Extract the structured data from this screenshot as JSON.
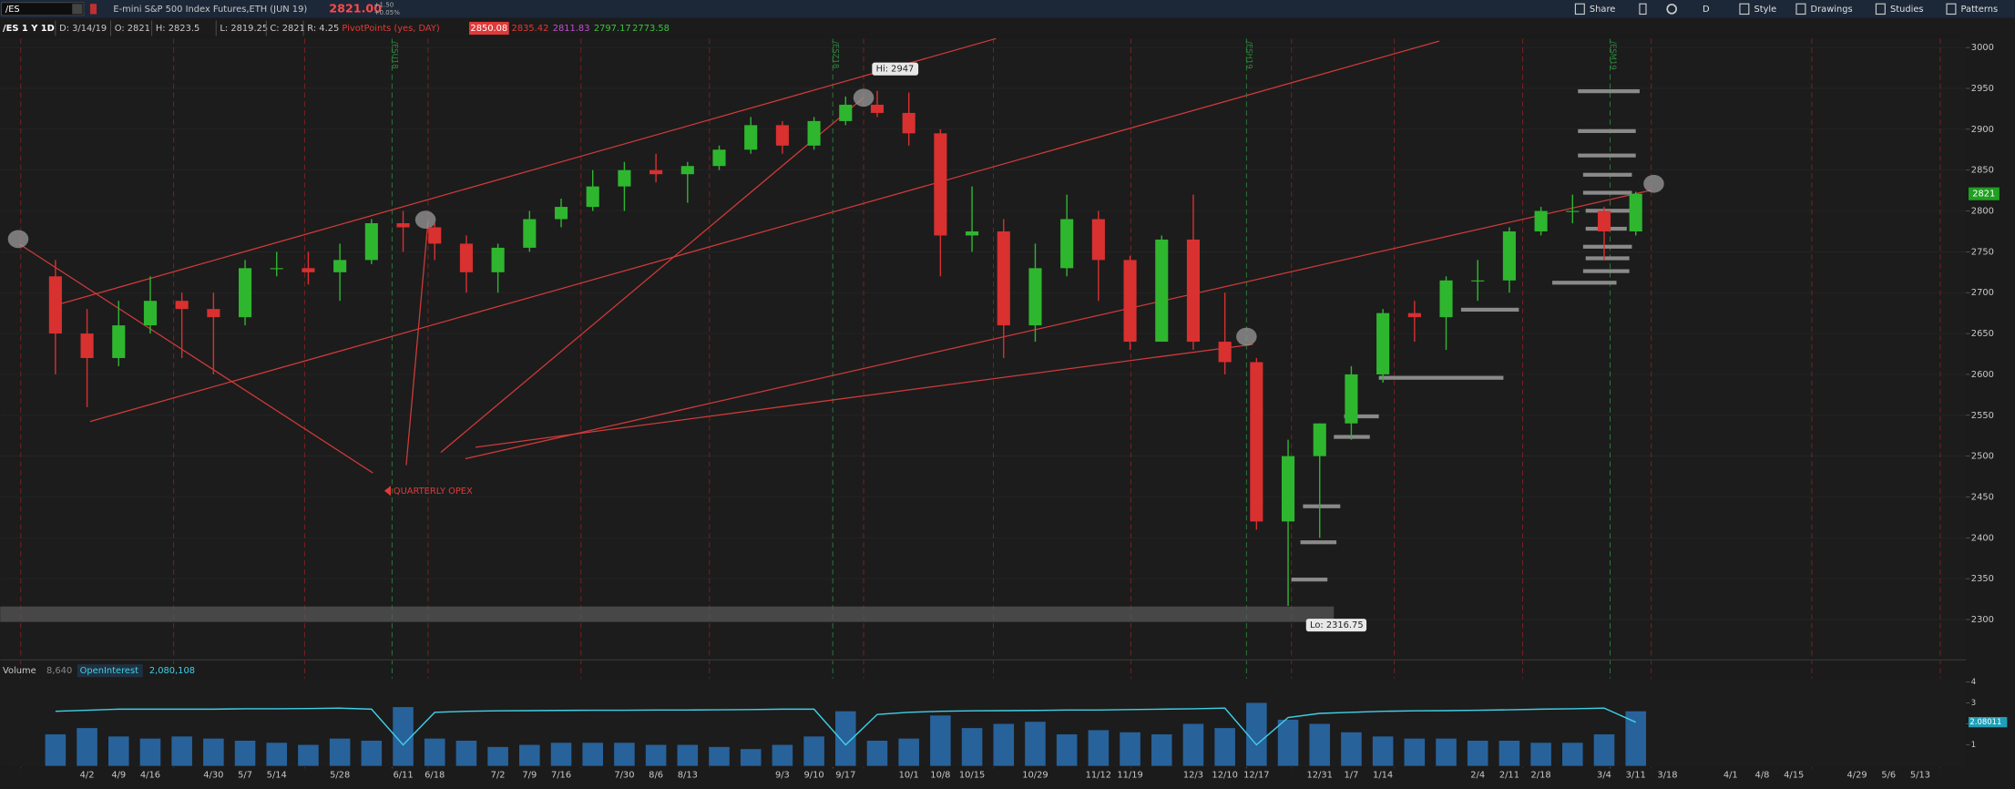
{
  "toolbar": {
    "symbol": "/ES",
    "description": "E-mini S&P 500 Index Futures,ETH (JUN 19)",
    "last": "2821.00",
    "change": "+1.50",
    "change_pct": "+0.05%",
    "buttons": [
      "Share",
      "D",
      "Style",
      "Drawings",
      "Studies",
      "Patterns"
    ]
  },
  "header": {
    "study": "/ES 1 Y 1D",
    "items": [
      "D: 3/14/19",
      "O: 2821",
      "H: 2823.5",
      "L: 2819.25",
      "C: 2821",
      "R: 4.25"
    ],
    "pivots_label": "PivotPoints (yes, DAY)",
    "pivots": [
      {
        "label": "2850.08",
        "color": "#e03a3a"
      },
      {
        "label": "2835.42",
        "color": "#e03a3a"
      },
      {
        "label": "2811.83",
        "color": "#c050d0"
      },
      {
        "label": "2797.17",
        "color": "#3cc43c"
      },
      {
        "label": "2773.58",
        "color": "#3cc43c"
      }
    ]
  },
  "chart_data": [
    {
      "type": "candlestick",
      "categories": [
        null,
        "4/2",
        "4/9",
        "4/16",
        null,
        "4/30",
        "5/7",
        "5/14",
        null,
        "5/28",
        null,
        "6/11",
        "6/18",
        null,
        "7/2",
        "7/9",
        "7/16",
        null,
        "7/30",
        "8/6",
        "8/13",
        null,
        null,
        "9/3",
        "9/10",
        "9/17",
        null,
        "10/1",
        "10/8",
        "10/15",
        null,
        "10/29",
        null,
        "11/12",
        "11/19",
        null,
        "12/3",
        "12/10",
        "12/17",
        null,
        "12/31",
        "1/7",
        "1/14",
        null,
        null,
        "2/4",
        "2/11",
        "2/18",
        null,
        "3/4",
        "3/11",
        "3/18",
        null,
        "4/1",
        "4/8",
        "4/15",
        null,
        "4/29",
        "5/6",
        "5/13"
      ],
      "open": [
        2720,
        2650,
        2620,
        2660,
        2690,
        2680,
        2670,
        2730,
        2730,
        2725,
        2740,
        2785,
        2780,
        2760,
        2725,
        2755,
        2790,
        2805,
        2830,
        2850,
        2845,
        2855,
        2875,
        2905,
        2880,
        2910,
        2930,
        2920,
        2895,
        2770,
        2775,
        2660,
        2730,
        2790,
        2740,
        2640,
        2765,
        2640,
        2615,
        2420,
        2500,
        2540,
        2600,
        2675,
        2670,
        2715,
        2715,
        2775,
        2800,
        2800,
        2775,
        null,
        null,
        null,
        null,
        null,
        null,
        null,
        null,
        null
      ],
      "high": [
        2740,
        2680,
        2690,
        2720,
        2700,
        2700,
        2740,
        2750,
        2750,
        2760,
        2790,
        2800,
        2785,
        2770,
        2760,
        2800,
        2815,
        2850,
        2860,
        2870,
        2860,
        2880,
        2915,
        2910,
        2915,
        2940,
        2947,
        2945,
        2900,
        2830,
        2790,
        2760,
        2820,
        2800,
        2745,
        2770,
        2820,
        2700,
        2620,
        2520,
        2540,
        2610,
        2680,
        2690,
        2720,
        2740,
        2780,
        2805,
        2820,
        2805,
        2823.5,
        null,
        null,
        null,
        null,
        null,
        null,
        null,
        null,
        null
      ],
      "low": [
        2600,
        2560,
        2610,
        2650,
        2620,
        2600,
        2660,
        2720,
        2710,
        2690,
        2735,
        2750,
        2740,
        2700,
        2700,
        2750,
        2780,
        2800,
        2800,
        2835,
        2810,
        2850,
        2870,
        2870,
        2875,
        2905,
        2915,
        2880,
        2720,
        2750,
        2620,
        2640,
        2720,
        2690,
        2630,
        2640,
        2630,
        2600,
        2410,
        2316.75,
        2400,
        2520,
        2590,
        2640,
        2630,
        2690,
        2700,
        2770,
        2785,
        2740,
        2770,
        null,
        null,
        null,
        null,
        null,
        null,
        null,
        null,
        null
      ],
      "close": [
        2650,
        2620,
        2660,
        2690,
        2680,
        2670,
        2730,
        2730,
        2725,
        2740,
        2785,
        2780,
        2760,
        2725,
        2755,
        2790,
        2805,
        2830,
        2850,
        2845,
        2855,
        2875,
        2905,
        2880,
        2910,
        2930,
        2920,
        2895,
        2770,
        2775,
        2660,
        2730,
        2790,
        2740,
        2640,
        2765,
        2640,
        2615,
        2420,
        2500,
        2540,
        2600,
        2675,
        2670,
        2715,
        2715,
        2775,
        2800,
        2800,
        2775,
        2821,
        null,
        null,
        null,
        null,
        null,
        null,
        null,
        null,
        null
      ],
      "up_color": "#2fb62f",
      "down_color": "#d93030",
      "ylim": [
        2253,
        3011
      ],
      "yticks": [
        2300,
        2350,
        2400,
        2450,
        2500,
        2550,
        2600,
        2650,
        2700,
        2750,
        2800,
        2850,
        2900,
        2950,
        3000
      ],
      "last_label": "2821",
      "high_label": "Hi: 2947",
      "low_label": "Lo: 2316.75",
      "opex_label": "QUARTERLY OPEX",
      "contracts": [
        "/ESU18",
        "/ESZ18",
        "/ESH19",
        "/ESM19"
      ]
    },
    {
      "type": "bar",
      "series": [
        {
          "name": "Volume",
          "legend_value": "8,640",
          "color": "#2a6fb0",
          "values": [
            1.5,
            1.8,
            1.4,
            1.3,
            1.4,
            1.3,
            1.2,
            1.1,
            1.0,
            1.3,
            1.2,
            2.8,
            1.3,
            1.2,
            0.9,
            1.0,
            1.1,
            1.1,
            1.1,
            1.0,
            1.0,
            0.9,
            0.8,
            1.0,
            1.4,
            2.6,
            1.2,
            1.3,
            2.4,
            1.8,
            2.0,
            2.1,
            1.5,
            1.7,
            1.6,
            1.5,
            2.0,
            1.8,
            3.0,
            2.2,
            2.0,
            1.6,
            1.4,
            1.3,
            1.3,
            1.2,
            1.2,
            1.1,
            1.1,
            1.5,
            2.6,
            null,
            null,
            null,
            null,
            null,
            null,
            null,
            null,
            null
          ]
        },
        {
          "name": "OpenInterest",
          "legend_value": "2,080,108",
          "color": "#3fd0e8",
          "values": [
            2.6,
            2.65,
            2.7,
            2.7,
            2.7,
            2.7,
            2.72,
            2.72,
            2.73,
            2.75,
            2.7,
            1.0,
            2.55,
            2.6,
            2.62,
            2.63,
            2.64,
            2.65,
            2.65,
            2.66,
            2.66,
            2.67,
            2.68,
            2.7,
            2.7,
            1.0,
            2.45,
            2.55,
            2.6,
            2.62,
            2.63,
            2.64,
            2.66,
            2.66,
            2.68,
            2.7,
            2.72,
            2.75,
            1.0,
            2.3,
            2.5,
            2.55,
            2.6,
            2.62,
            2.63,
            2.65,
            2.67,
            2.7,
            2.72,
            2.75,
            2.08,
            null,
            null,
            null,
            null,
            null,
            null,
            null,
            null,
            null
          ]
        }
      ],
      "ylim": [
        0,
        4.1
      ],
      "yticks": [
        1,
        2,
        3,
        4
      ],
      "last_label": "2.08011"
    }
  ]
}
